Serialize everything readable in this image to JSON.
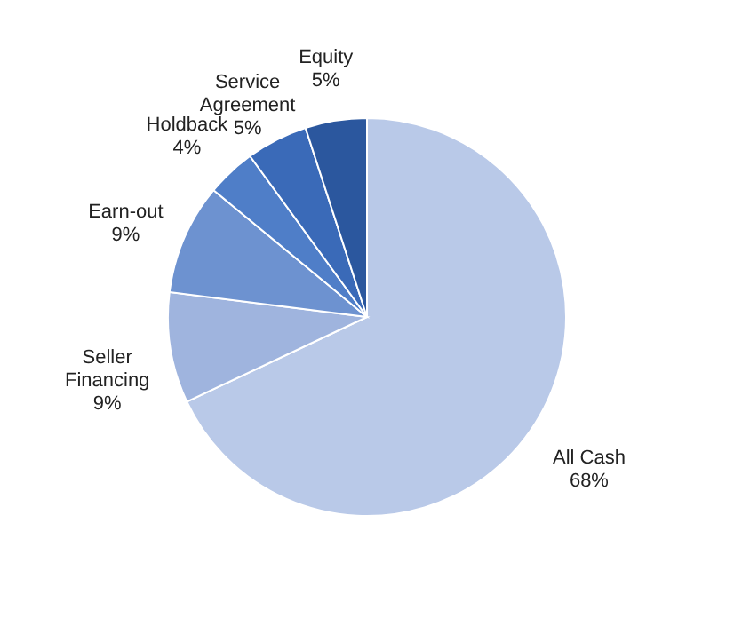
{
  "chart_data": {
    "type": "pie",
    "categories": [
      "All Cash",
      "Seller Financing",
      "Earn-out",
      "Holdback",
      "Service Agreement",
      "Equity"
    ],
    "values": [
      68,
      9,
      9,
      4,
      5,
      5
    ],
    "value_labels": [
      "68%",
      "9%",
      "9%",
      "4%",
      "5%",
      "5%"
    ],
    "colors": [
      "#b9c9e8",
      "#9fb4de",
      "#6d92d0",
      "#4f7ec8",
      "#3a6ab8",
      "#2b579e"
    ]
  }
}
